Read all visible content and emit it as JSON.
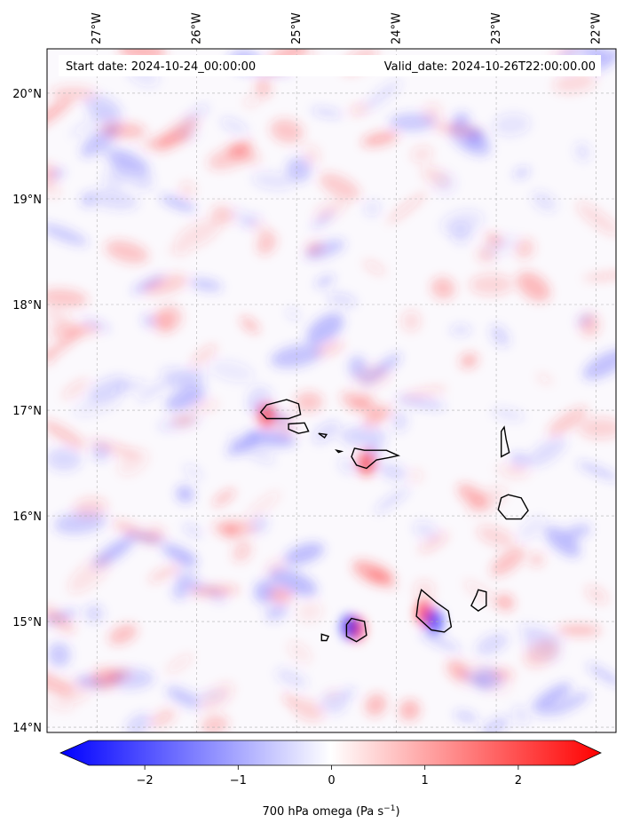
{
  "header": {
    "start_date": "Start date: 2024-10-24_00:00:00",
    "valid_date": "Valid_date: 2024-10-26T22:00:00.00"
  },
  "map": {
    "lon_range": [
      -27.5,
      -21.8
    ],
    "lat_range": [
      13.95,
      20.42
    ],
    "lon_ticks": [
      {
        "value": -27,
        "label": "27°W"
      },
      {
        "value": -26,
        "label": "26°W"
      },
      {
        "value": -25,
        "label": "25°W"
      },
      {
        "value": -24,
        "label": "24°W"
      },
      {
        "value": -23,
        "label": "23°W"
      },
      {
        "value": -22,
        "label": "22°W"
      }
    ],
    "lat_ticks": [
      {
        "value": 20,
        "label": "20°N"
      },
      {
        "value": 19,
        "label": "19°N"
      },
      {
        "value": 18,
        "label": "18°N"
      },
      {
        "value": 17,
        "label": "17°N"
      },
      {
        "value": 16,
        "label": "16°N"
      },
      {
        "value": 15,
        "label": "15°N"
      },
      {
        "value": 14,
        "label": "14°N"
      }
    ],
    "gridlines": true,
    "islands": [
      {
        "name": "santo-antao",
        "coords": [
          [
            -25.3,
            17.05
          ],
          [
            -25.1,
            17.1
          ],
          [
            -24.98,
            17.06
          ],
          [
            -24.96,
            16.96
          ],
          [
            -25.08,
            16.92
          ],
          [
            -25.3,
            16.92
          ],
          [
            -25.36,
            16.98
          ],
          [
            -25.3,
            17.05
          ]
        ]
      },
      {
        "name": "sao-vicente",
        "coords": [
          [
            -25.08,
            16.87
          ],
          [
            -24.92,
            16.88
          ],
          [
            -24.88,
            16.8
          ],
          [
            -24.98,
            16.78
          ],
          [
            -25.08,
            16.82
          ],
          [
            -25.08,
            16.87
          ]
        ]
      },
      {
        "name": "santa-luzia",
        "coords": [
          [
            -24.78,
            16.78
          ],
          [
            -24.7,
            16.77
          ],
          [
            -24.72,
            16.74
          ],
          [
            -24.78,
            16.78
          ]
        ]
      },
      {
        "name": "sao-nicolau",
        "coords": [
          [
            -24.42,
            16.64
          ],
          [
            -24.32,
            16.62
          ],
          [
            -24.1,
            16.62
          ],
          [
            -23.98,
            16.57
          ],
          [
            -24.08,
            16.55
          ],
          [
            -24.2,
            16.53
          ],
          [
            -24.3,
            16.45
          ],
          [
            -24.4,
            16.48
          ],
          [
            -24.45,
            16.56
          ],
          [
            -24.42,
            16.64
          ]
        ]
      },
      {
        "name": "raso",
        "coords": [
          [
            -24.6,
            16.62
          ],
          [
            -24.55,
            16.61
          ],
          [
            -24.58,
            16.6
          ],
          [
            -24.6,
            16.62
          ]
        ]
      },
      {
        "name": "sal",
        "coords": [
          [
            -22.92,
            16.84
          ],
          [
            -22.9,
            16.72
          ],
          [
            -22.87,
            16.6
          ],
          [
            -22.95,
            16.56
          ],
          [
            -22.95,
            16.7
          ],
          [
            -22.95,
            16.8
          ],
          [
            -22.92,
            16.84
          ]
        ]
      },
      {
        "name": "boa-vista",
        "coords": [
          [
            -22.88,
            16.2
          ],
          [
            -22.75,
            16.17
          ],
          [
            -22.68,
            16.05
          ],
          [
            -22.75,
            15.97
          ],
          [
            -22.9,
            15.97
          ],
          [
            -22.98,
            16.06
          ],
          [
            -22.95,
            16.17
          ],
          [
            -22.88,
            16.2
          ]
        ]
      },
      {
        "name": "maio",
        "coords": [
          [
            -23.18,
            15.3
          ],
          [
            -23.1,
            15.28
          ],
          [
            -23.1,
            15.15
          ],
          [
            -23.18,
            15.1
          ],
          [
            -23.25,
            15.15
          ],
          [
            -23.2,
            15.25
          ],
          [
            -23.18,
            15.3
          ]
        ]
      },
      {
        "name": "santiago",
        "coords": [
          [
            -23.75,
            15.3
          ],
          [
            -23.6,
            15.18
          ],
          [
            -23.48,
            15.1
          ],
          [
            -23.45,
            14.95
          ],
          [
            -23.52,
            14.9
          ],
          [
            -23.65,
            14.92
          ],
          [
            -23.72,
            14.98
          ],
          [
            -23.8,
            15.05
          ],
          [
            -23.78,
            15.2
          ],
          [
            -23.75,
            15.3
          ]
        ]
      },
      {
        "name": "fogo",
        "coords": [
          [
            -24.45,
            15.03
          ],
          [
            -24.32,
            15.0
          ],
          [
            -24.3,
            14.87
          ],
          [
            -24.4,
            14.81
          ],
          [
            -24.5,
            14.86
          ],
          [
            -24.5,
            14.97
          ],
          [
            -24.45,
            15.03
          ]
        ]
      },
      {
        "name": "brava",
        "coords": [
          [
            -24.75,
            14.88
          ],
          [
            -24.68,
            14.86
          ],
          [
            -24.7,
            14.82
          ],
          [
            -24.75,
            14.82
          ],
          [
            -24.75,
            14.88
          ]
        ]
      }
    ]
  },
  "colorbar": {
    "vmin": -2.6,
    "vmax": 2.6,
    "ticks": [
      {
        "value": -2,
        "label": "−2"
      },
      {
        "value": -1,
        "label": "−1"
      },
      {
        "value": 0,
        "label": "0"
      },
      {
        "value": 1,
        "label": "1"
      },
      {
        "value": 2,
        "label": "2"
      }
    ],
    "label_main": "700 hPa omega (Pa s",
    "label_sup": "−1",
    "label_end": ")",
    "colormap": "bwr",
    "low_color": "#0000ff",
    "mid_color": "#ffffff",
    "high_color": "#ff0000"
  }
}
